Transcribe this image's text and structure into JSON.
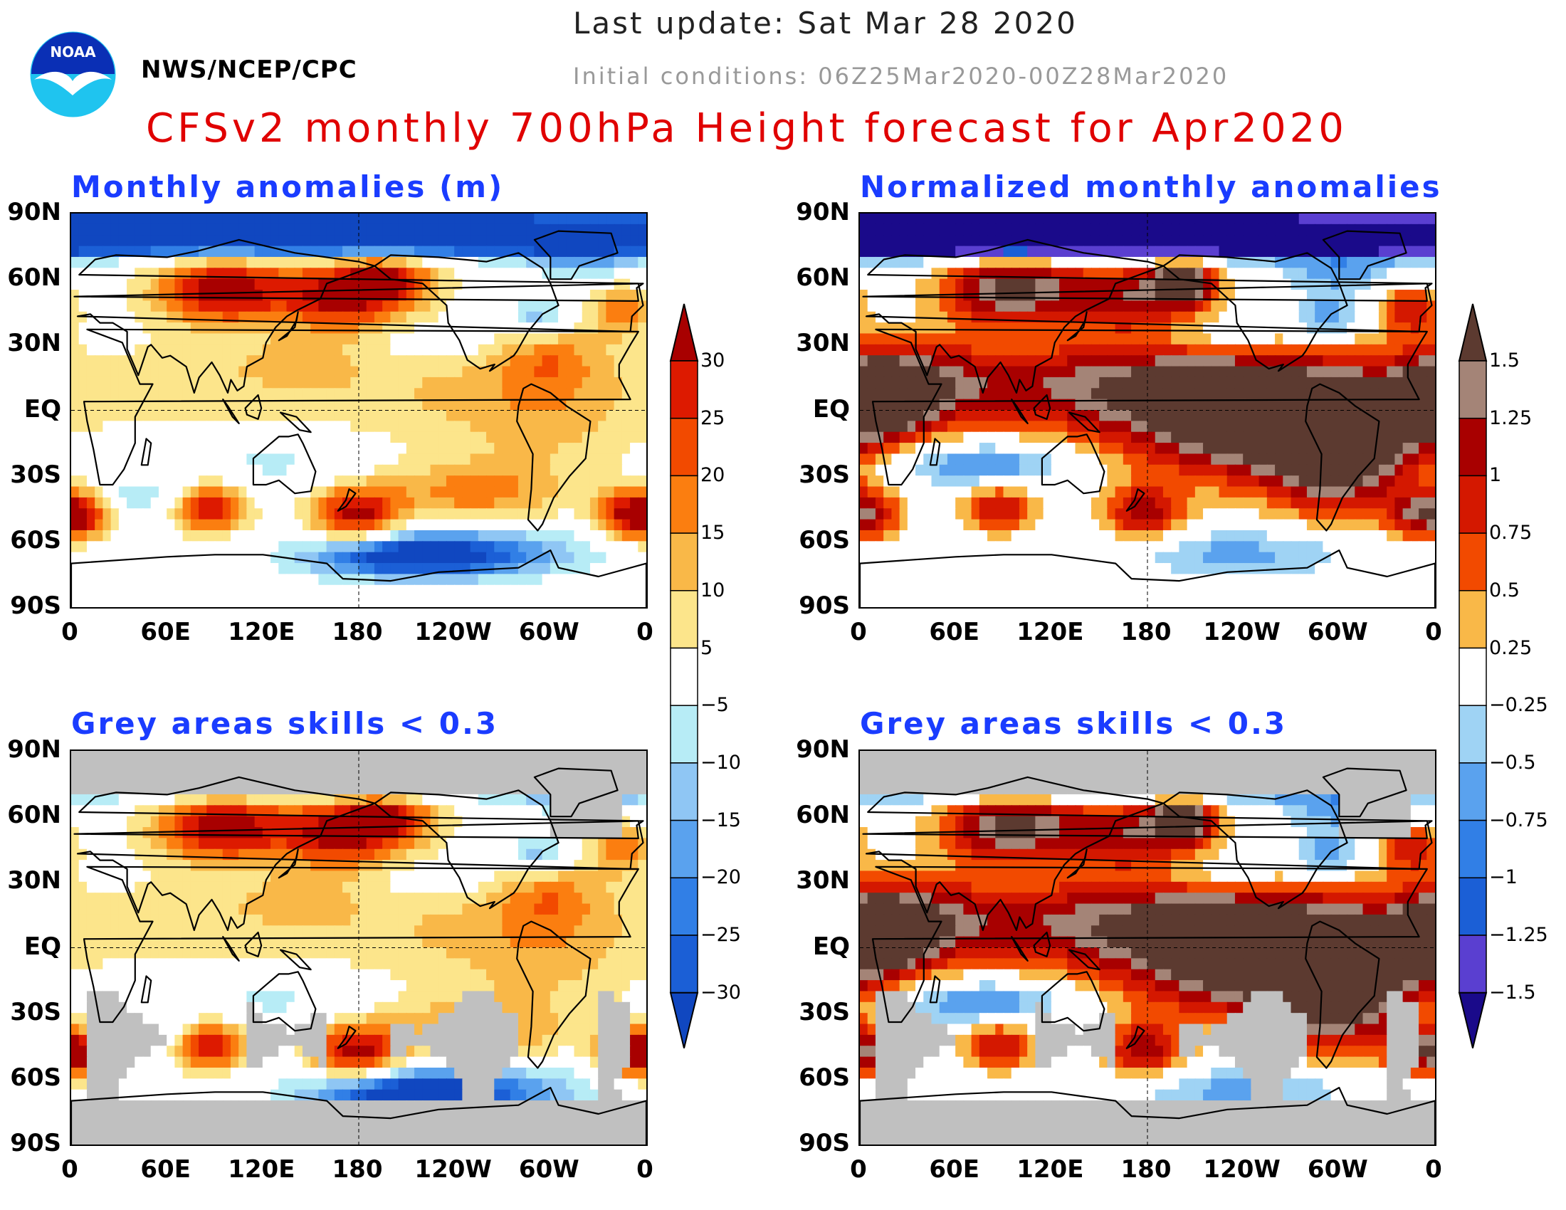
{
  "header": {
    "last_update": "Last update: Sat Mar 28 2020",
    "initial_conditions": "Initial conditions: 06Z25Mar2020-00Z28Mar2020",
    "agency": "NWS/NCEP/CPC",
    "logo_text": "NOAA",
    "main_title": "CFSv2 monthly 700hPa Height forecast for Apr2020"
  },
  "panels": [
    {
      "id": "tl",
      "title": "Monthly anomalies (m)",
      "scale": "abs",
      "skill_mask": false
    },
    {
      "id": "tr",
      "title": "Normalized monthly anomalies",
      "scale": "norm",
      "skill_mask": false
    },
    {
      "id": "bl",
      "title": "Grey areas skills < 0.3",
      "scale": "abs",
      "skill_mask": true
    },
    {
      "id": "br",
      "title": "Grey areas skills < 0.3",
      "scale": "norm",
      "skill_mask": true
    }
  ],
  "axes": {
    "lat_labels": [
      "90N",
      "60N",
      "30N",
      "EQ",
      "30S",
      "60S",
      "90S"
    ],
    "lon_labels": [
      "0",
      "60E",
      "120E",
      "180",
      "120W",
      "60W",
      "0"
    ]
  },
  "colorbars": {
    "abs": {
      "labels": [
        "30",
        "25",
        "20",
        "15",
        "10",
        "5",
        "−5",
        "−10",
        "−15",
        "−20",
        "−25",
        "−30"
      ],
      "colors": [
        "#a80000",
        "#dd1a00",
        "#f24a00",
        "#fb7e10",
        "#f9b848",
        "#fce58b",
        "#ffffff",
        "#b7ecf6",
        "#8fc6f4",
        "#5aa2ee",
        "#317fe6",
        "#1b5fd6",
        "#1047c0"
      ]
    },
    "norm": {
      "labels": [
        "1.5",
        "1.25",
        "1",
        "0.75",
        "0.5",
        "0.25",
        "−0.25",
        "−0.5",
        "−0.75",
        "−1",
        "−1.25",
        "−1.5"
      ],
      "colors": [
        "#5c3a30",
        "#a48477",
        "#a80000",
        "#d41800",
        "#f24a00",
        "#f9b848",
        "#ffffff",
        "#9fd3f4",
        "#5aa2ee",
        "#317fe6",
        "#1b5fd6",
        "#5a3fd0",
        "#1a0a8a"
      ]
    }
  },
  "colors": {
    "title_red": "#e00000",
    "panel_title_blue": "#1a3cff",
    "skill_grey": "#c0c0c0"
  }
}
